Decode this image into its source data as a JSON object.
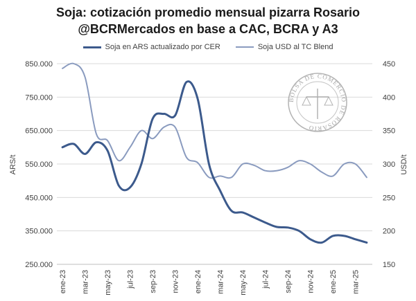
{
  "header": {
    "title": "Soja: cotización promedio mensual pizarra Rosario",
    "subtitle": "@BCRMercados en base a CAC, BCRA y A3"
  },
  "seal": {
    "text": "BOLSA DE COMERCIO DE ROSARIO"
  },
  "chart_data": {
    "type": "line",
    "title": "Soja: cotización promedio mensual pizarra Rosario",
    "subtitle": "@BCRMercados en base a CAC, BCRA y A3",
    "ylabel_left": "ARS/t",
    "ylabel_right": "USD/t",
    "ylim_left": [
      250000,
      850000
    ],
    "ylim_right": [
      150,
      450
    ],
    "yticks_left": [
      "250.000",
      "350.000",
      "450.000",
      "550.000",
      "650.000",
      "750.000",
      "850.000"
    ],
    "yticks_right": [
      "150",
      "200",
      "250",
      "300",
      "350",
      "400",
      "450"
    ],
    "x": [
      "ene-23",
      "feb-23",
      "mar-23",
      "abr-23",
      "may-23",
      "jun-23",
      "jul-23",
      "ago-23",
      "sep-23",
      "oct-23",
      "nov-23",
      "dic-23",
      "ene-24",
      "feb-24",
      "mar-24",
      "abr-24",
      "may-24",
      "jun-24",
      "jul-24",
      "ago-24",
      "sep-24",
      "oct-24",
      "nov-24",
      "dic-24",
      "ene-25",
      "feb-25",
      "mar-25",
      "abr-25"
    ],
    "xtick_labels": [
      "ene-23",
      "mar-23",
      "may-23",
      "jul-23",
      "sep-23",
      "nov-23",
      "ene-24",
      "mar-24",
      "may-24",
      "jul-24",
      "sep-24",
      "nov-24",
      "ene-25",
      "mar-25"
    ],
    "series": [
      {
        "name": "Soja en ARS actualizado por CER",
        "axis": "left",
        "color": "#3c5a8c",
        "values": [
          600000,
          610000,
          580000,
          615000,
          590000,
          485000,
          480000,
          550000,
          685000,
          700000,
          695000,
          795000,
          745000,
          550000,
          470000,
          410000,
          405000,
          390000,
          375000,
          362000,
          360000,
          350000,
          325000,
          315000,
          335000,
          335000,
          325000,
          315000
        ]
      },
      {
        "name": "Soja USD al TC Blend",
        "axis": "right",
        "color": "#8a9bbf",
        "values": [
          443,
          450,
          430,
          345,
          335,
          305,
          325,
          350,
          338,
          355,
          355,
          310,
          302,
          280,
          282,
          280,
          300,
          298,
          290,
          290,
          295,
          305,
          300,
          288,
          282,
          300,
          300,
          280
        ]
      }
    ],
    "grid": true,
    "legend": "top"
  }
}
